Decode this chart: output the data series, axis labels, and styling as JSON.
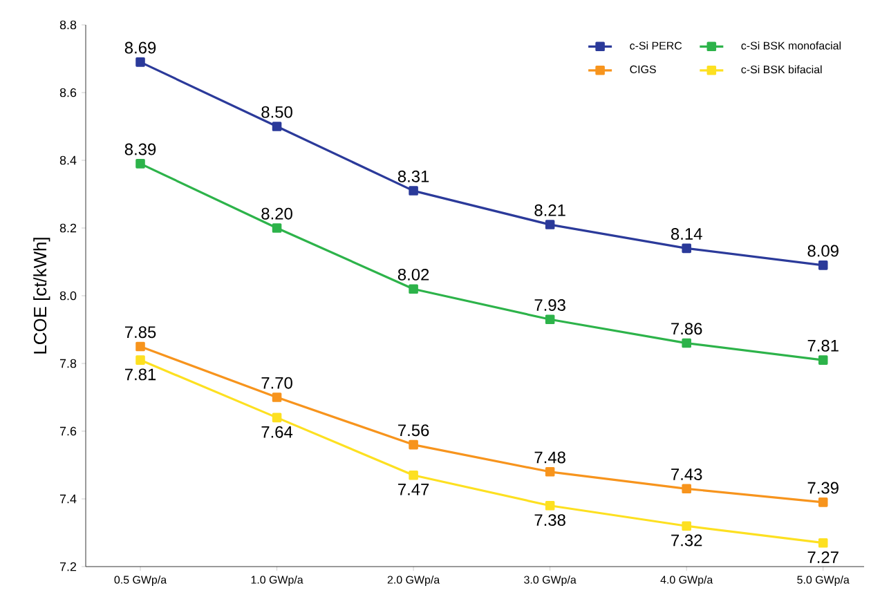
{
  "chart_data": {
    "type": "line",
    "ylabel": "LCOE [ct/kWh]",
    "categories": [
      "0.5 GWp/a",
      "1.0 GWp/a",
      "2.0 GWp/a",
      "3.0 GWp/a",
      "4.0 GWp/a",
      "5.0 GWp/a"
    ],
    "ylim": [
      7.2,
      8.8
    ],
    "yticks": [
      7.2,
      7.4,
      7.6,
      7.8,
      {
        "value": 8.0,
        "label": "8.0"
      },
      8.2,
      8.4,
      8.6,
      8.8
    ],
    "legend": "top right",
    "marker": "square",
    "line_style": "solid",
    "grid": false,
    "series": [
      {
        "name": "c-Si PERC",
        "color": "#2b3a9a",
        "values": [
          8.69,
          8.5,
          8.31,
          8.21,
          8.14,
          8.09
        ],
        "value_labels": [
          "8.69",
          "8.50",
          "8.31",
          "8.21",
          "8.14",
          "8.09"
        ]
      },
      {
        "name": "c-Si BSK monofacial",
        "color": "#2db34a",
        "values": [
          8.39,
          8.2,
          8.02,
          7.93,
          7.86,
          7.81
        ],
        "value_labels": [
          "8.39",
          "8.20",
          "8.02",
          "7.93",
          "7.86",
          "7.81"
        ]
      },
      {
        "name": "CIGS",
        "color": "#f7941d",
        "values": [
          7.85,
          7.7,
          7.56,
          7.48,
          7.43,
          7.39
        ],
        "value_labels": [
          "7.85",
          "7.70",
          "7.56",
          "7.48",
          "7.43",
          "7.39"
        ]
      },
      {
        "name": "c-Si BSK bifacial",
        "color": "#fde021",
        "values": [
          7.81,
          7.64,
          7.47,
          7.38,
          7.32,
          7.27
        ],
        "value_labels": [
          "7.81",
          "7.64",
          "7.47",
          "7.38",
          "7.32",
          "7.27"
        ]
      }
    ]
  }
}
